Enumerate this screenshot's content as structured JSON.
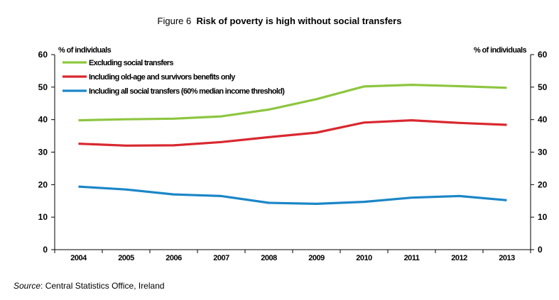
{
  "figure": {
    "label": "Figure 6",
    "title": "Risk of poverty is high without social transfers"
  },
  "source": {
    "prefix": "Source",
    "text": ": Central Statistics Office, Ireland"
  },
  "chart_data": {
    "type": "line",
    "ylabel_left": "% of individuals",
    "ylabel_right": "% of individuals",
    "ylim": [
      0,
      60
    ],
    "yticks": [
      0,
      10,
      20,
      30,
      40,
      50,
      60
    ],
    "categories": [
      "2004",
      "2005",
      "2006",
      "2007",
      "2008",
      "2009",
      "2010",
      "2011",
      "2012",
      "2013"
    ],
    "grid": false,
    "legend_position": "top-left",
    "series": [
      {
        "name": "Excluding social transfers",
        "color": "#8dc63f",
        "values": [
          39.8,
          40.1,
          40.3,
          41.0,
          43.1,
          46.3,
          50.2,
          50.7,
          50.3,
          49.8
        ]
      },
      {
        "name": "Including old-age and survivors benefits only",
        "color": "#d9282f",
        "values": [
          32.6,
          32.0,
          32.1,
          33.1,
          34.6,
          36.0,
          39.1,
          39.8,
          39.0,
          38.4
        ]
      },
      {
        "name": "Including all social transfers (60% median income threshold)",
        "color": "#1b86c8",
        "values": [
          19.4,
          18.5,
          17.0,
          16.5,
          14.4,
          14.1,
          14.7,
          16.0,
          16.5,
          15.2
        ]
      }
    ]
  }
}
